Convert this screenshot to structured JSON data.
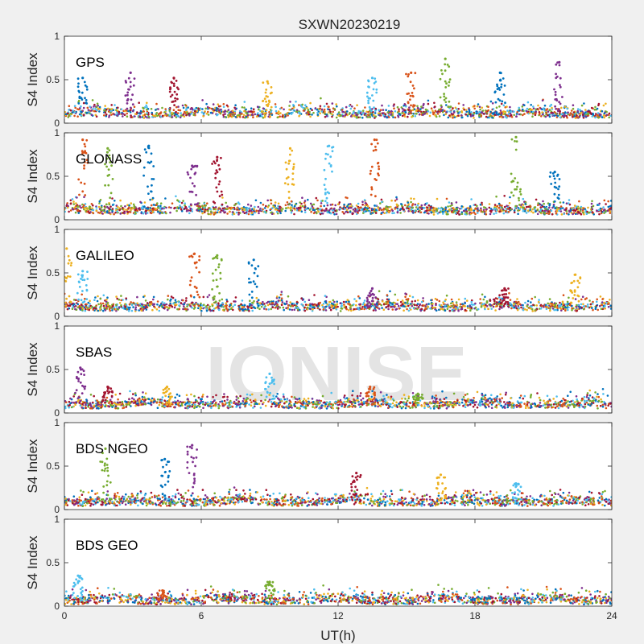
{
  "figure": {
    "title": "SXWN20230219",
    "watermark": "IONISE",
    "xlabel": "UT(h)",
    "background": "#f0f0f0",
    "axes_background": "#ffffff"
  },
  "chart_data": {
    "type": "scatter",
    "xlabel": "UT(h)",
    "ylabel": "S4 Index",
    "xlim": [
      0,
      24
    ],
    "ylim": [
      0,
      1
    ],
    "xticks": [
      0,
      6,
      12,
      18,
      24
    ],
    "yticks": [
      0,
      0.5,
      1
    ],
    "grid": false,
    "palette": [
      "#0072bd",
      "#d95319",
      "#edb120",
      "#7e2f8e",
      "#77ac30",
      "#4dbeee",
      "#a2142f"
    ],
    "panels": [
      {
        "label": "GPS",
        "baseline": 0.1,
        "spikes": [
          {
            "x": 0.8,
            "y": 0.52
          },
          {
            "x": 2.9,
            "y": 0.58
          },
          {
            "x": 4.8,
            "y": 0.52
          },
          {
            "x": 8.9,
            "y": 0.48
          },
          {
            "x": 13.5,
            "y": 0.52
          },
          {
            "x": 15.2,
            "y": 0.58
          },
          {
            "x": 16.7,
            "y": 0.74
          },
          {
            "x": 19.1,
            "y": 0.58
          },
          {
            "x": 21.7,
            "y": 0.7
          }
        ]
      },
      {
        "label": "GLONASS",
        "baseline": 0.1,
        "spikes": [
          {
            "x": 0.8,
            "y": 0.92
          },
          {
            "x": 1.9,
            "y": 0.82
          },
          {
            "x": 3.7,
            "y": 0.85
          },
          {
            "x": 5.6,
            "y": 0.62
          },
          {
            "x": 6.7,
            "y": 0.72
          },
          {
            "x": 9.9,
            "y": 0.82
          },
          {
            "x": 11.6,
            "y": 0.85
          },
          {
            "x": 13.6,
            "y": 0.92
          },
          {
            "x": 19.8,
            "y": 0.95
          },
          {
            "x": 21.5,
            "y": 0.55
          }
        ]
      },
      {
        "label": "GALILEO",
        "baseline": 0.1,
        "spikes": [
          {
            "x": 0.1,
            "y": 0.78
          },
          {
            "x": 0.8,
            "y": 0.52
          },
          {
            "x": 5.7,
            "y": 0.72
          },
          {
            "x": 6.7,
            "y": 0.7
          },
          {
            "x": 8.3,
            "y": 0.65
          },
          {
            "x": 13.5,
            "y": 0.32
          },
          {
            "x": 19.3,
            "y": 0.32
          },
          {
            "x": 22.4,
            "y": 0.48
          }
        ]
      },
      {
        "label": "SBAS",
        "baseline": 0.09,
        "spikes": [
          {
            "x": 0.7,
            "y": 0.52
          },
          {
            "x": 1.9,
            "y": 0.3
          },
          {
            "x": 4.5,
            "y": 0.3
          },
          {
            "x": 9.0,
            "y": 0.45
          },
          {
            "x": 13.4,
            "y": 0.3
          },
          {
            "x": 15.5,
            "y": 0.22
          }
        ]
      },
      {
        "label": "BDS NGEO",
        "baseline": 0.08,
        "spikes": [
          {
            "x": 1.8,
            "y": 0.7
          },
          {
            "x": 4.4,
            "y": 0.58
          },
          {
            "x": 5.6,
            "y": 0.74
          },
          {
            "x": 12.8,
            "y": 0.42
          },
          {
            "x": 16.5,
            "y": 0.4
          },
          {
            "x": 19.8,
            "y": 0.3
          }
        ]
      },
      {
        "label": "BDS GEO",
        "baseline": 0.06,
        "spikes": [
          {
            "x": 0.6,
            "y": 0.35
          },
          {
            "x": 4.3,
            "y": 0.18
          },
          {
            "x": 9.0,
            "y": 0.28
          }
        ]
      }
    ]
  }
}
